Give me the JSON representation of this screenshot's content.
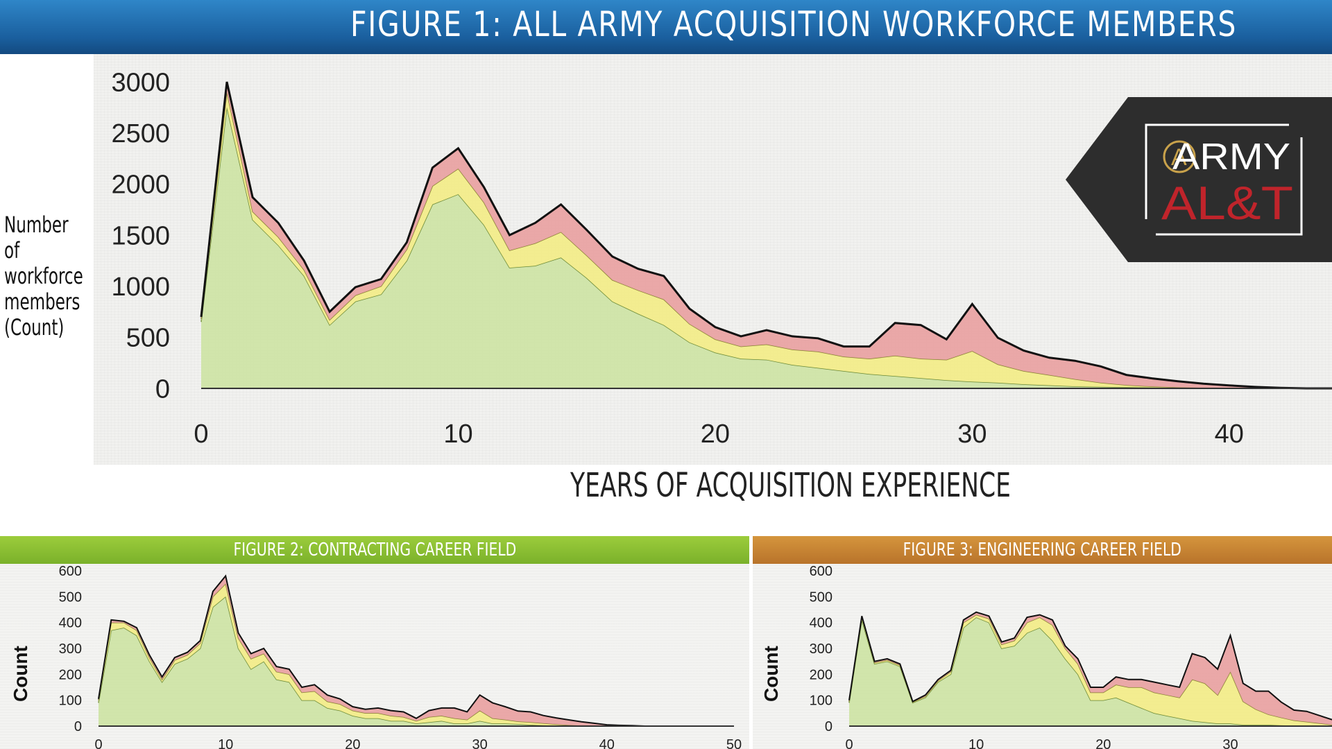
{
  "banner": {
    "title": "FIGURE 1: ALL ARMY ACQUISITION WORKFORCE MEMBERS"
  },
  "fig1": {
    "ylabel_lines": [
      "Number of",
      "workforce",
      "members",
      "(Count)"
    ],
    "xlabel": "YEARS OF ACQUISITION EXPERIENCE"
  },
  "fig2": {
    "title": "FIGURE 2: CONTRACTING CAREER FIELD",
    "ylabel": "Count"
  },
  "fig3": {
    "title": "FIGURE 3: ENGINEERING CAREER FIELD",
    "ylabel": "Count"
  },
  "logo": {
    "line1": "ARMY",
    "line2": "AL&T",
    "monogram": "A"
  },
  "colors": {
    "green": "#cfe4a6",
    "yellow": "#f2ec8a",
    "pink": "#e9a3a3",
    "line": "#111111",
    "banner": "#1f6aa8",
    "fig2_head": "#8cc034",
    "fig3_head": "#c98535"
  },
  "chart_data": [
    {
      "type": "area",
      "stacked": true,
      "xlim": [
        0,
        44
      ],
      "ylim": [
        0,
        3000
      ],
      "x_ticks": [
        0,
        10,
        20,
        30,
        40
      ],
      "y_ticks": [
        0,
        500,
        1000,
        1500,
        2000,
        2500,
        3000
      ],
      "x": [
        0,
        1,
        2,
        3,
        4,
        5,
        6,
        7,
        8,
        9,
        10,
        11,
        12,
        13,
        14,
        15,
        16,
        17,
        18,
        19,
        20,
        21,
        22,
        23,
        24,
        25,
        26,
        27,
        28,
        29,
        30,
        31,
        32,
        33,
        34,
        35,
        36,
        37,
        38,
        39,
        40,
        41,
        42,
        43,
        44
      ],
      "series": [
        {
          "values": [
            650,
            2750,
            1650,
            1400,
            1100,
            620,
            850,
            920,
            1250,
            1800,
            1900,
            1600,
            1180,
            1200,
            1280,
            1080,
            850,
            730,
            620,
            450,
            350,
            290,
            280,
            230,
            200,
            170,
            140,
            120,
            100,
            80,
            65,
            55,
            40,
            30,
            20,
            15,
            12,
            8,
            5,
            3,
            2,
            1,
            0,
            0,
            0
          ]
        },
        {
          "values": [
            30,
            150,
            80,
            80,
            60,
            50,
            60,
            80,
            110,
            180,
            250,
            220,
            170,
            220,
            250,
            220,
            210,
            230,
            250,
            180,
            130,
            120,
            150,
            150,
            160,
            140,
            150,
            200,
            190,
            200,
            300,
            180,
            130,
            100,
            70,
            40,
            20,
            10,
            5,
            3,
            2,
            1,
            0,
            0,
            0
          ]
        },
        {
          "values": [
            20,
            100,
            140,
            140,
            90,
            80,
            80,
            70,
            70,
            180,
            200,
            150,
            150,
            200,
            270,
            250,
            230,
            210,
            230,
            150,
            120,
            100,
            140,
            130,
            130,
            100,
            120,
            320,
            330,
            200,
            460,
            260,
            200,
            170,
            180,
            160,
            100,
            80,
            60,
            40,
            25,
            12,
            5,
            0,
            0
          ]
        }
      ]
    },
    {
      "type": "area",
      "stacked": true,
      "xlim": [
        0,
        50
      ],
      "ylim": [
        0,
        600
      ],
      "x_ticks": [
        0,
        10,
        20,
        30,
        40,
        50
      ],
      "y_ticks": [
        0,
        100,
        200,
        300,
        400,
        500,
        600
      ],
      "x": [
        0,
        1,
        2,
        3,
        4,
        5,
        6,
        7,
        8,
        9,
        10,
        11,
        12,
        13,
        14,
        15,
        16,
        17,
        18,
        19,
        20,
        21,
        22,
        23,
        24,
        25,
        26,
        27,
        28,
        29,
        30,
        31,
        32,
        33,
        34,
        35,
        36,
        37,
        38,
        39,
        40,
        41,
        42,
        43,
        44,
        45,
        46,
        47,
        48,
        49,
        50
      ],
      "series": [
        {
          "values": [
            90,
            370,
            380,
            350,
            250,
            170,
            240,
            260,
            300,
            460,
            500,
            300,
            220,
            250,
            180,
            170,
            100,
            100,
            70,
            60,
            40,
            30,
            30,
            20,
            20,
            10,
            15,
            20,
            10,
            10,
            20,
            10,
            10,
            8,
            5,
            3,
            2,
            1,
            0,
            0,
            0,
            0,
            0,
            0,
            0,
            0,
            0,
            0,
            0,
            0,
            0
          ]
        },
        {
          "values": [
            10,
            30,
            20,
            20,
            15,
            10,
            15,
            15,
            20,
            40,
            50,
            40,
            40,
            30,
            30,
            30,
            30,
            35,
            25,
            25,
            20,
            20,
            20,
            20,
            15,
            10,
            20,
            20,
            20,
            15,
            40,
            20,
            15,
            10,
            10,
            8,
            5,
            3,
            2,
            1,
            0,
            0,
            0,
            0,
            0,
            0,
            0,
            0,
            0,
            0,
            0
          ]
        },
        {
          "values": [
            5,
            10,
            5,
            10,
            10,
            10,
            10,
            10,
            10,
            20,
            30,
            20,
            20,
            20,
            20,
            20,
            20,
            25,
            25,
            20,
            15,
            15,
            20,
            20,
            20,
            10,
            25,
            30,
            40,
            30,
            60,
            60,
            50,
            40,
            40,
            30,
            25,
            20,
            15,
            10,
            5,
            3,
            2,
            0,
            0,
            0,
            0,
            0,
            0,
            0,
            0
          ]
        }
      ]
    },
    {
      "type": "area",
      "stacked": true,
      "xlim": [
        0,
        38
      ],
      "ylim": [
        0,
        600
      ],
      "x_ticks": [
        0,
        10,
        20,
        30
      ],
      "y_ticks": [
        0,
        100,
        200,
        300,
        400,
        500,
        600
      ],
      "x": [
        0,
        1,
        2,
        3,
        4,
        5,
        6,
        7,
        8,
        9,
        10,
        11,
        12,
        13,
        14,
        15,
        16,
        17,
        18,
        19,
        20,
        21,
        22,
        23,
        24,
        25,
        26,
        27,
        28,
        29,
        30,
        31,
        32,
        33,
        34,
        35,
        36,
        37,
        38
      ],
      "series": [
        {
          "values": [
            90,
            410,
            240,
            250,
            230,
            90,
            110,
            170,
            200,
            380,
            420,
            400,
            300,
            310,
            360,
            380,
            330,
            260,
            200,
            100,
            100,
            110,
            90,
            70,
            50,
            40,
            30,
            20,
            15,
            10,
            10,
            5,
            5,
            5,
            3,
            2,
            2,
            1,
            0
          ]
        },
        {
          "values": [
            5,
            10,
            5,
            5,
            5,
            3,
            5,
            5,
            10,
            20,
            10,
            15,
            15,
            20,
            40,
            40,
            60,
            40,
            40,
            30,
            30,
            50,
            60,
            80,
            80,
            80,
            80,
            160,
            150,
            110,
            200,
            90,
            60,
            40,
            30,
            20,
            15,
            10,
            5
          ]
        },
        {
          "values": [
            5,
            5,
            5,
            5,
            5,
            2,
            5,
            5,
            5,
            10,
            10,
            10,
            10,
            10,
            20,
            10,
            20,
            10,
            20,
            20,
            20,
            30,
            30,
            30,
            40,
            40,
            40,
            100,
            100,
            100,
            140,
            70,
            70,
            90,
            60,
            40,
            40,
            30,
            20
          ]
        }
      ]
    }
  ]
}
